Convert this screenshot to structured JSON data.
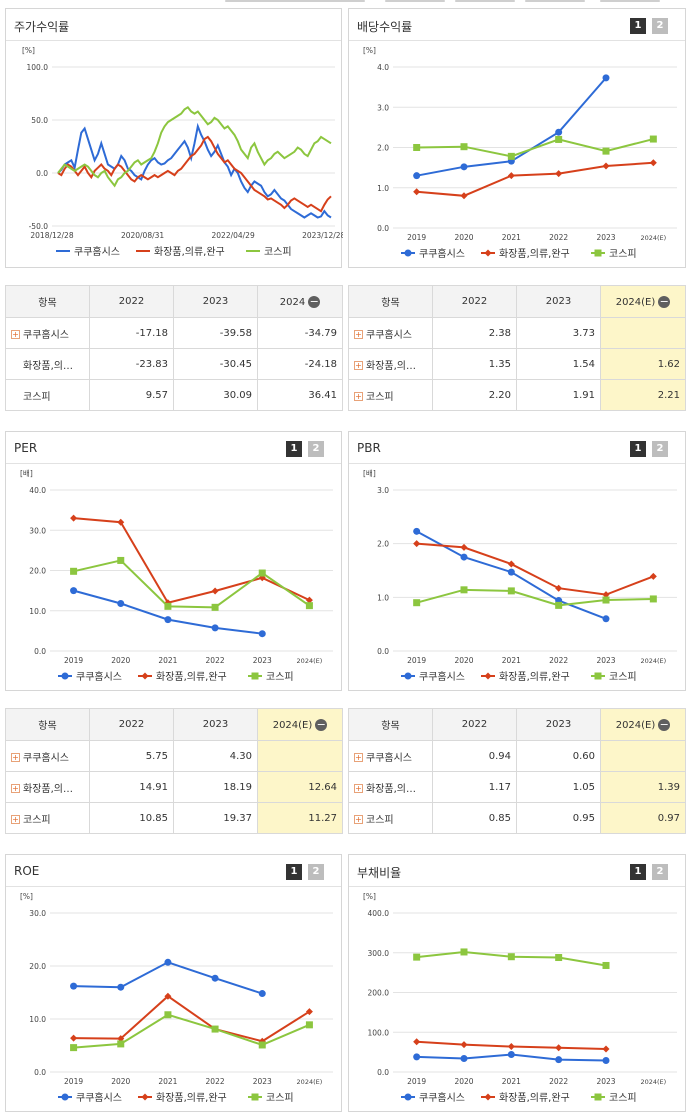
{
  "colors": {
    "kuku": "#2e6bd6",
    "cosmetic": "#d6401b",
    "kospi": "#8cc63f"
  },
  "legend": [
    "쿠쿠홈시스",
    "화장품,의류,완구",
    "코스피"
  ],
  "yoy_headers": [
    "2022",
    "2023",
    "2024"
  ],
  "est_headers": [
    "2022",
    "2023",
    "2024(E)"
  ],
  "buttons": {
    "b1": "1",
    "b2": "2"
  },
  "charts": {
    "ret": {
      "title": "주가수익률",
      "chart_data": {
        "type": "line",
        "unit": "[%]",
        "ylim": [
          -50,
          100
        ],
        "yticks": [
          "100.0",
          "50.0",
          "0.0",
          "-50.0"
        ],
        "xticks": [
          "2018/12/28",
          "2020/08/31",
          "2022/04/29",
          "2023/12/28"
        ],
        "series": [
          {
            "name": "쿠쿠홈시스",
            "values": [
              0,
              3,
              8,
              10,
              12,
              5,
              22,
              38,
              42,
              32,
              22,
              12,
              18,
              28,
              18,
              8,
              6,
              4,
              8,
              16,
              12,
              4,
              2,
              -2,
              -4,
              -6,
              2,
              8,
              12,
              14,
              10,
              8,
              9,
              12,
              14,
              18,
              22,
              26,
              30,
              24,
              14,
              28,
              44,
              36,
              30,
              22,
              16,
              20,
              26,
              18,
              10,
              6,
              -2,
              4,
              0,
              -8,
              -14,
              -18,
              -12,
              -8,
              -10,
              -12,
              -18,
              -22,
              -20,
              -16,
              -20,
              -24,
              -26,
              -30,
              -34,
              -36,
              -38,
              -40,
              -42,
              -40,
              -38,
              -40,
              -42,
              -41,
              -36,
              -40,
              -42
            ]
          },
          {
            "name": "화장품,의류,완구",
            "values": [
              0,
              -2,
              4,
              8,
              6,
              2,
              -2,
              2,
              6,
              0,
              -4,
              2,
              5,
              8,
              4,
              2,
              -2,
              4,
              8,
              6,
              2,
              -2,
              -6,
              -8,
              -4,
              -2,
              -4,
              -6,
              -4,
              -2,
              -4,
              -2,
              0,
              2,
              0,
              -2,
              2,
              4,
              8,
              12,
              16,
              18,
              22,
              26,
              32,
              34,
              30,
              24,
              18,
              14,
              10,
              12,
              8,
              4,
              2,
              0,
              -4,
              -8,
              -12,
              -16,
              -18,
              -20,
              -22,
              -25,
              -24,
              -26,
              -28,
              -30,
              -33,
              -30,
              -26,
              -24,
              -26,
              -28,
              -30,
              -32,
              -30,
              -32,
              -34,
              -36,
              -30,
              -25,
              -22
            ]
          },
          {
            "name": "코스피",
            "values": [
              0,
              4,
              8,
              6,
              4,
              2,
              4,
              6,
              8,
              6,
              2,
              -2,
              -4,
              0,
              2,
              -4,
              -8,
              -12,
              -6,
              -4,
              0,
              2,
              6,
              10,
              12,
              8,
              10,
              12,
              14,
              20,
              28,
              38,
              44,
              48,
              50,
              52,
              54,
              56,
              60,
              62,
              58,
              56,
              58,
              54,
              50,
              46,
              48,
              52,
              50,
              46,
              42,
              44,
              40,
              36,
              30,
              22,
              18,
              14,
              24,
              28,
              20,
              14,
              8,
              12,
              14,
              18,
              20,
              17,
              14,
              16,
              18,
              20,
              24,
              22,
              18,
              16,
              22,
              28,
              30,
              34,
              32,
              30,
              28
            ]
          }
        ]
      }
    },
    "div": {
      "title": "배당수익률",
      "chart_data": {
        "type": "line",
        "unit": "[%]",
        "ylim": [
          0,
          4
        ],
        "yticks": [
          "4.0",
          "3.0",
          "2.0",
          "1.0",
          "0.0"
        ],
        "x": [
          "2019",
          "2020",
          "2021",
          "2022",
          "2023",
          "2024(E)"
        ],
        "series": [
          {
            "name": "쿠쿠홈시스",
            "marker": "circle",
            "values": [
              1.3,
              1.52,
              1.66,
              2.38,
              3.73,
              null
            ]
          },
          {
            "name": "화장품,의류,완구",
            "marker": "diamond",
            "values": [
              0.9,
              0.8,
              1.3,
              1.35,
              1.54,
              1.62
            ]
          },
          {
            "name": "코스피",
            "marker": "square",
            "values": [
              2.0,
              2.02,
              1.78,
              2.2,
              1.91,
              2.21
            ]
          }
        ]
      }
    },
    "per": {
      "title": "PER",
      "chart_data": {
        "type": "line",
        "unit": "[배]",
        "ylim": [
          0,
          40
        ],
        "yticks": [
          "40.0",
          "30.0",
          "20.0",
          "10.0",
          "0.0"
        ],
        "x": [
          "2019",
          "2020",
          "2021",
          "2022",
          "2023",
          "2024(E)"
        ],
        "series": [
          {
            "name": "쿠쿠홈시스",
            "marker": "circle",
            "values": [
              15.0,
              11.8,
              7.8,
              5.75,
              4.3,
              null
            ]
          },
          {
            "name": "화장품,의류,완구",
            "marker": "diamond",
            "values": [
              33.0,
              32.0,
              12.0,
              14.91,
              18.19,
              12.64
            ]
          },
          {
            "name": "코스피",
            "marker": "square",
            "values": [
              19.8,
              22.5,
              11.1,
              10.85,
              19.37,
              11.27
            ]
          }
        ]
      }
    },
    "pbr": {
      "title": "PBR",
      "chart_data": {
        "type": "line",
        "unit": "[배]",
        "ylim": [
          0,
          3
        ],
        "yticks": [
          "3.0",
          "2.0",
          "1.0",
          "0.0"
        ],
        "x": [
          "2019",
          "2020",
          "2021",
          "2022",
          "2023",
          "2024(E)"
        ],
        "series": [
          {
            "name": "쿠쿠홈시스",
            "marker": "circle",
            "values": [
              2.23,
              1.75,
              1.47,
              0.94,
              0.6,
              null
            ]
          },
          {
            "name": "화장품,의류,완구",
            "marker": "diamond",
            "values": [
              2.0,
              1.93,
              1.62,
              1.17,
              1.05,
              1.39
            ]
          },
          {
            "name": "코스피",
            "marker": "square",
            "values": [
              0.9,
              1.14,
              1.12,
              0.85,
              0.95,
              0.97
            ]
          }
        ]
      }
    },
    "roe": {
      "title": "ROE",
      "chart_data": {
        "type": "line",
        "unit": "[%]",
        "ylim": [
          0,
          30
        ],
        "yticks": [
          "30.0",
          "20.0",
          "10.0",
          "0.0"
        ],
        "x": [
          "2019",
          "2020",
          "2021",
          "2022",
          "2023",
          "2024(E)"
        ],
        "series": [
          {
            "name": "쿠쿠홈시스",
            "marker": "circle",
            "values": [
              16.2,
              16.0,
              20.7,
              17.7,
              14.8,
              null
            ]
          },
          {
            "name": "화장품,의류,완구",
            "marker": "diamond",
            "values": [
              6.4,
              6.3,
              14.3,
              8.1,
              5.8,
              11.4
            ]
          },
          {
            "name": "코스피",
            "marker": "square",
            "values": [
              4.6,
              5.3,
              10.8,
              8.1,
              5.1,
              8.9
            ]
          }
        ]
      }
    },
    "debt": {
      "title": "부채비율",
      "chart_data": {
        "type": "line",
        "unit": "[%]",
        "ylim": [
          0,
          400
        ],
        "yticks": [
          "400.0",
          "300.0",
          "200.0",
          "100.0",
          "0.0"
        ],
        "x": [
          "2019",
          "2020",
          "2021",
          "2022",
          "2023",
          "2024(E)"
        ],
        "series": [
          {
            "name": "쿠쿠홈시스",
            "marker": "circle",
            "values": [
              38,
              34,
              44,
              31,
              29,
              null
            ]
          },
          {
            "name": "화장품,의류,완구",
            "marker": "diamond",
            "values": [
              76,
              69,
              64,
              61,
              58,
              null
            ]
          },
          {
            "name": "코스피",
            "marker": "square",
            "values": [
              289,
              302,
              290,
              288,
              268,
              null
            ]
          }
        ]
      }
    }
  },
  "tables": {
    "ret": {
      "header": "항목",
      "rows": [
        {
          "name": "쿠쿠홈시스",
          "plus": true,
          "values": [
            "-17.18",
            "-39.58",
            "-34.79"
          ]
        },
        {
          "name": "화장품,의…",
          "plus": false,
          "values": [
            "-23.83",
            "-30.45",
            "-24.18"
          ]
        },
        {
          "name": "코스피",
          "plus": false,
          "values": [
            "9.57",
            "30.09",
            "36.41"
          ]
        }
      ]
    },
    "div": {
      "header": "항목",
      "rows": [
        {
          "name": "쿠쿠홈시스",
          "plus": true,
          "values": [
            "2.38",
            "3.73",
            ""
          ]
        },
        {
          "name": "화장품,의…",
          "plus": true,
          "values": [
            "1.35",
            "1.54",
            "1.62"
          ]
        },
        {
          "name": "코스피",
          "plus": true,
          "values": [
            "2.20",
            "1.91",
            "2.21"
          ]
        }
      ]
    },
    "per": {
      "header": "항목",
      "rows": [
        {
          "name": "쿠쿠홈시스",
          "plus": true,
          "values": [
            "5.75",
            "4.30",
            ""
          ]
        },
        {
          "name": "화장품,의…",
          "plus": true,
          "values": [
            "14.91",
            "18.19",
            "12.64"
          ]
        },
        {
          "name": "코스피",
          "plus": true,
          "values": [
            "10.85",
            "19.37",
            "11.27"
          ]
        }
      ]
    },
    "pbr": {
      "header": "항목",
      "rows": [
        {
          "name": "쿠쿠홈시스",
          "plus": true,
          "values": [
            "0.94",
            "0.60",
            ""
          ]
        },
        {
          "name": "화장품,의…",
          "plus": true,
          "values": [
            "1.17",
            "1.05",
            "1.39"
          ]
        },
        {
          "name": "코스피",
          "plus": true,
          "values": [
            "0.85",
            "0.95",
            "0.97"
          ]
        }
      ]
    }
  }
}
